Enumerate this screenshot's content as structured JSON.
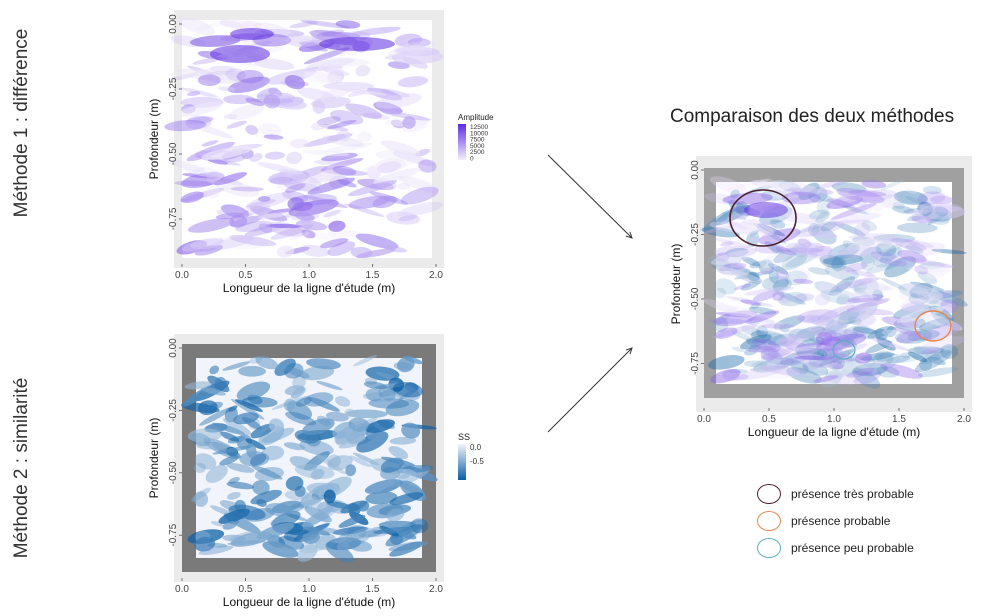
{
  "method1_label": "Méthode 1 : différence",
  "method2_label": "Méthode 2 : similarité",
  "comparison_title": "Comparaison des deux méthodes",
  "x_axis_label": "Longueur de la ligne d'étude (m)",
  "y_axis_label": "Profondeur (m)",
  "x_ticks": [
    "0.0",
    "0.5",
    "1.0",
    "1.5",
    "2.0"
  ],
  "y_ticks": [
    "0.00",
    "-0.25",
    "-0.50",
    "-0.75"
  ],
  "amplitude_legend": {
    "title": "Amplitude",
    "ticks": [
      "12500",
      "10000",
      "7500",
      "5000",
      "2500",
      "0"
    ]
  },
  "ss_legend": {
    "title": "SS",
    "ticks": [
      "0.0",
      "-0.5"
    ]
  },
  "legend": [
    {
      "label": "présence très probable",
      "color": "#4a1f2e"
    },
    {
      "label": "présence probable",
      "color": "#e8854a"
    },
    {
      "label": "présence peu probable",
      "color": "#5aafc0"
    }
  ],
  "colors": {
    "amplitude_low": "#f3eefc",
    "amplitude_high": "#5b2be0",
    "ss_low": "#0b5fa5",
    "ss_high": "#f2f4fb",
    "panel_bg": "#ebebeb",
    "border_dark": "#7a7a7a"
  }
}
